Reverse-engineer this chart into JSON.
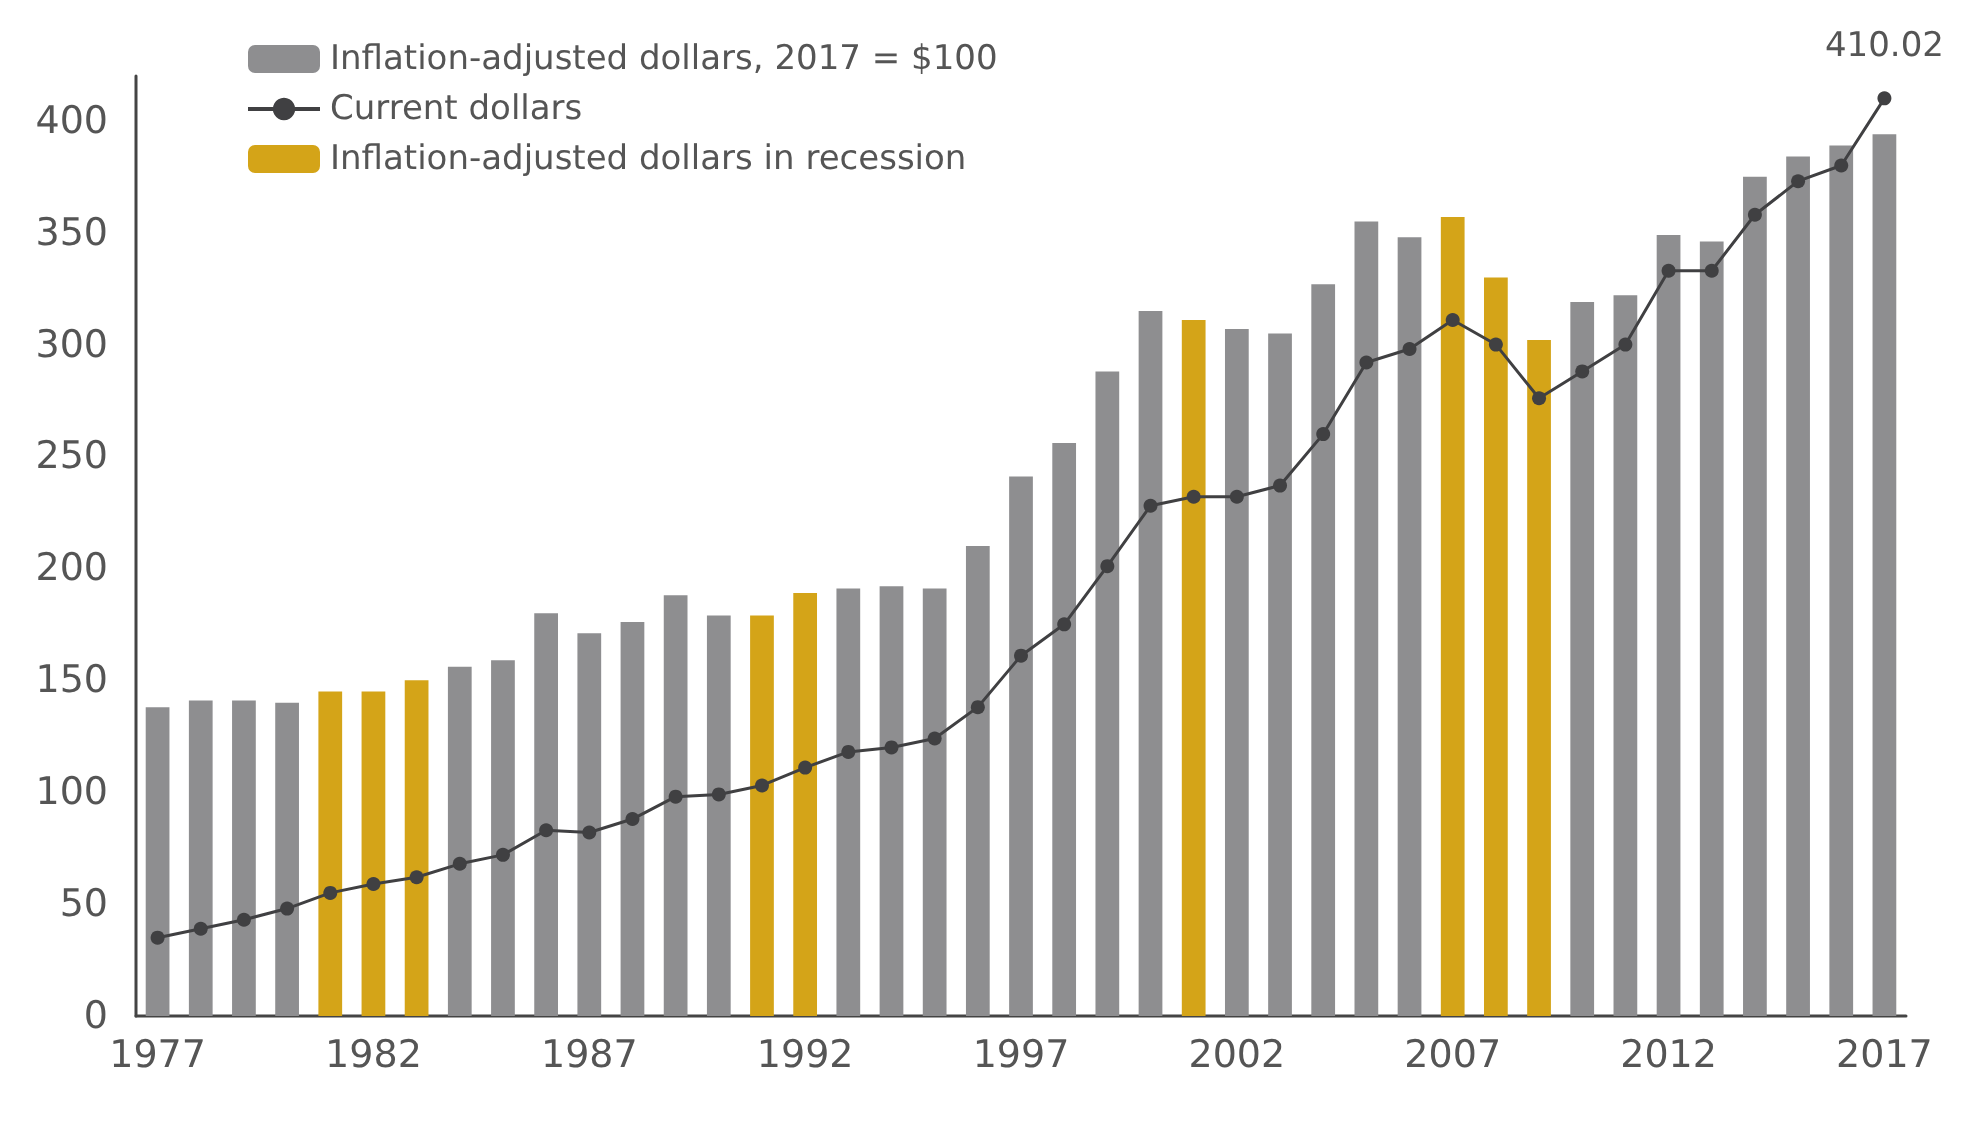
{
  "chart_data": {
    "type": "bar",
    "stacked": true,
    "categories": [
      "1977",
      null,
      null,
      null,
      null,
      "1982",
      null,
      null,
      null,
      null,
      "1987",
      null,
      null,
      null,
      null,
      "1992",
      null,
      null,
      null,
      null,
      "1997",
      null,
      null,
      null,
      null,
      "2002",
      null,
      null,
      null,
      null,
      "2007",
      null,
      null,
      null,
      null,
      "2012",
      null,
      null,
      null,
      null,
      "2017"
    ],
    "ylim": [
      0,
      420
    ],
    "yticks": [
      0,
      50,
      100,
      150,
      200,
      250,
      300,
      350,
      400
    ],
    "grid": false,
    "legend": "top left",
    "marker": "circle",
    "line_style": "solid",
    "series": [
      {
        "name": "Inflation-adjusted dollars, 2017 = $100",
        "color": "#8e8e90",
        "values": [
          138,
          141,
          141,
          140,
          null,
          null,
          null,
          156,
          159,
          180,
          171,
          176,
          188,
          179,
          null,
          null,
          191,
          192,
          191,
          210,
          241,
          256,
          288,
          315,
          null,
          307,
          305,
          327,
          355,
          348,
          null,
          null,
          null,
          319,
          322,
          349,
          346,
          375,
          384,
          389,
          394
        ]
      },
      {
        "name": "Current dollars",
        "type": "line",
        "color": "#404042",
        "values": [
          35,
          39,
          43,
          48,
          55,
          59,
          62,
          68,
          72,
          83,
          82,
          88,
          98,
          99,
          103,
          111,
          118,
          120,
          124,
          138,
          161,
          175,
          201,
          228,
          232,
          232,
          237,
          260,
          292,
          298,
          311,
          300,
          276,
          288,
          300,
          333,
          333,
          358,
          373,
          380,
          410.02
        ],
        "value_labels": [
          null,
          null,
          null,
          null,
          null,
          null,
          null,
          null,
          null,
          null,
          null,
          null,
          null,
          null,
          null,
          null,
          null,
          null,
          null,
          null,
          null,
          null,
          null,
          null,
          null,
          null,
          null,
          null,
          null,
          null,
          null,
          null,
          null,
          null,
          null,
          null,
          null,
          null,
          null,
          null,
          "410.02"
        ]
      },
      {
        "name": "Inflation-adjusted dollars in recession",
        "color": "#d4a418",
        "values": [
          null,
          null,
          null,
          null,
          145,
          145,
          150,
          null,
          null,
          null,
          null,
          null,
          null,
          null,
          179,
          189,
          null,
          null,
          null,
          null,
          null,
          null,
          null,
          null,
          311,
          null,
          null,
          null,
          null,
          null,
          357,
          330,
          302,
          null,
          null,
          null,
          null,
          null,
          null,
          null,
          null
        ]
      }
    ]
  }
}
